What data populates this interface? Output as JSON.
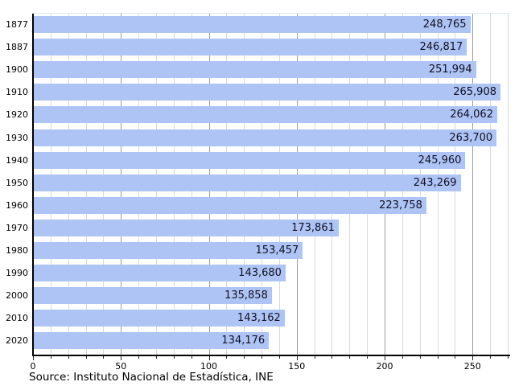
{
  "chart_data": {
    "type": "bar",
    "orientation": "horizontal",
    "title": "",
    "xlabel": "",
    "ylabel": "",
    "categories": [
      "1877",
      "1887",
      "1900",
      "1910",
      "1920",
      "1930",
      "1940",
      "1950",
      "1960",
      "1970",
      "1980",
      "1990",
      "2000",
      "2010",
      "2020"
    ],
    "values": [
      248765,
      246817,
      251994,
      265908,
      264062,
      263700,
      245960,
      243269,
      223758,
      173861,
      153457,
      143680,
      135858,
      143162,
      134176
    ],
    "value_labels": [
      "248,765",
      "246,817",
      "251,994",
      "265,908",
      "264,062",
      "263,700",
      "245,960",
      "243,269",
      "223,758",
      "173,861",
      "153,457",
      "143,680",
      "135,858",
      "143,162",
      "134,176"
    ],
    "x_tick_labels": [
      "0",
      "50",
      "100",
      "150",
      "200",
      "250"
    ],
    "x_ticks": [
      0,
      50,
      100,
      150,
      200,
      250
    ],
    "x_minor_step": 10,
    "xlim": [
      0,
      270
    ],
    "x_value_scale": 1000,
    "grid": "vertical",
    "legend": "none",
    "colors": {
      "bar_fill": "#aec4f5",
      "value_text": "#101020",
      "grid_major": "#9a9a9a",
      "grid_minor": "#d9d9d9",
      "axis": "#000000"
    }
  },
  "footer": {
    "source": "Source: Instituto Nacional de Estadística, INE"
  }
}
